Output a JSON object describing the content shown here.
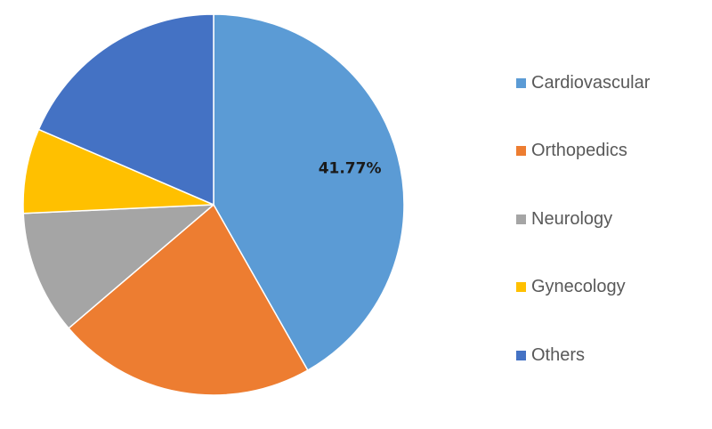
{
  "chart_data": {
    "type": "pie",
    "start_angle_deg": 0,
    "direction": "clockwise",
    "legend_position": "right",
    "slices": [
      {
        "name": "Cardiovascular",
        "value": 41.77,
        "color": "#5B9BD5",
        "label": "41.77%"
      },
      {
        "name": "Orthopedics",
        "value": 22.0,
        "color": "#ED7D31",
        "label": ""
      },
      {
        "name": "Neurology",
        "value": 10.5,
        "color": "#A5A5A5",
        "label": ""
      },
      {
        "name": "Gynecology",
        "value": 7.2,
        "color": "#FFC000",
        "label": ""
      },
      {
        "name": "Others",
        "value": 18.53,
        "color": "#4472C4",
        "label": ""
      }
    ]
  }
}
